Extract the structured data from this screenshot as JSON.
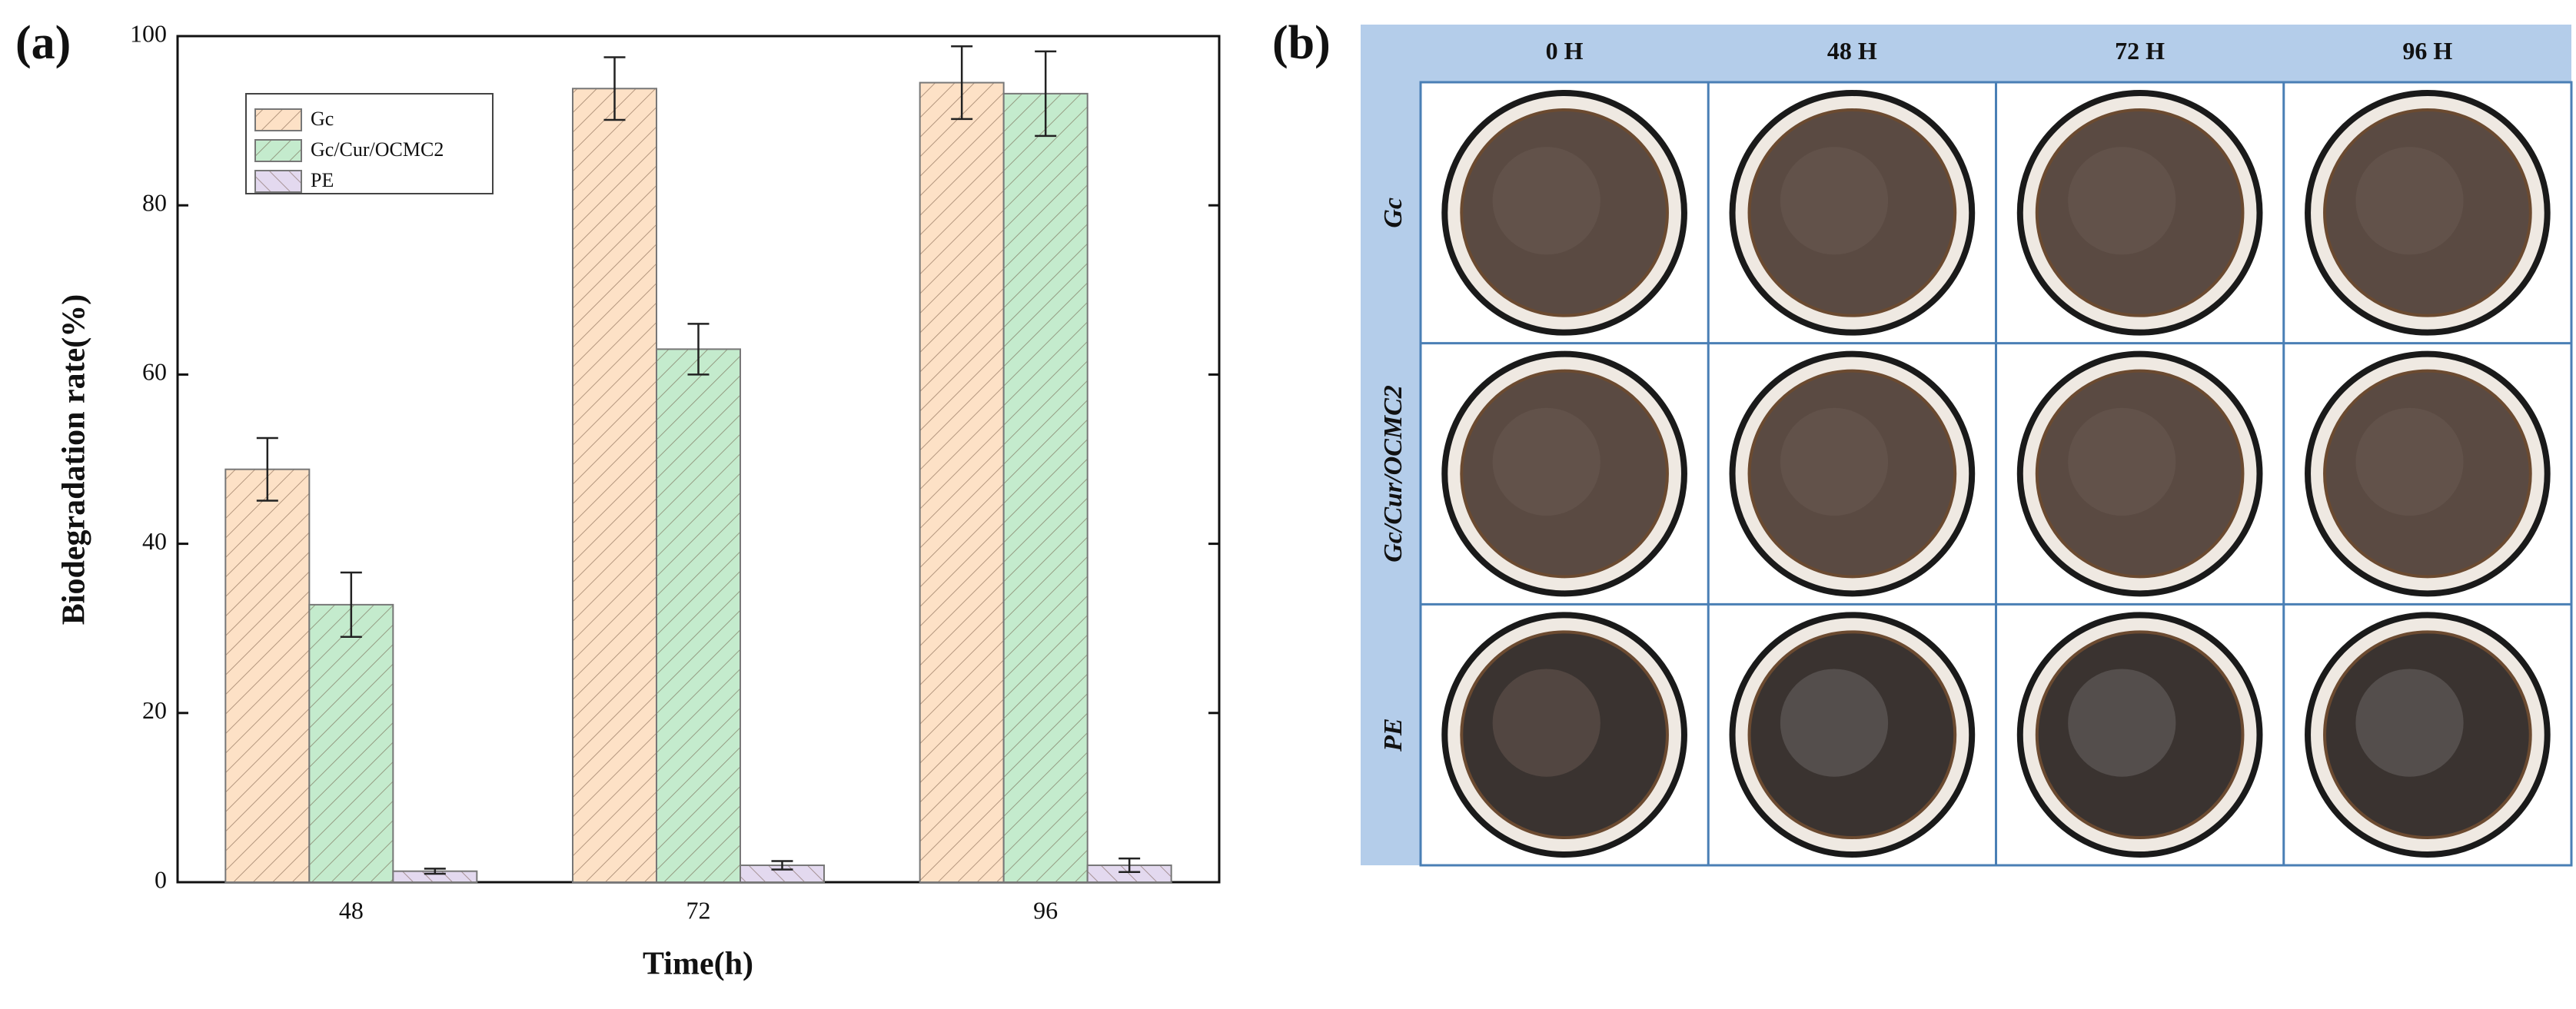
{
  "chart_data": {
    "type": "bar",
    "panel_label": "(a)",
    "x_label": "Time(h)",
    "y_label": "Biodegradation rate(%)",
    "categories": [
      "48",
      "72",
      "96"
    ],
    "series": [
      {
        "name": "Gc",
        "color": "#fde1c6",
        "values": [
          48.8,
          93.8,
          94.5
        ],
        "errors": [
          3.7,
          3.7,
          4.3
        ]
      },
      {
        "name": "Gc/Cur/OCMC2",
        "color": "#c4ebcd",
        "values": [
          32.8,
          63.0,
          93.2
        ],
        "errors": [
          3.8,
          3.0,
          5.0
        ]
      },
      {
        "name": "PE",
        "color": "#e3d9ef",
        "values": [
          1.3,
          2.0,
          2.0
        ],
        "errors": [
          0.3,
          0.5,
          0.8
        ]
      }
    ],
    "ylim": [
      0,
      100
    ],
    "yticks": [
      0,
      20,
      40,
      60,
      80,
      100
    ]
  },
  "photo_grid": {
    "panel_label": "(b)",
    "columns": [
      "0 H",
      "48 H",
      "72 H",
      "96 H"
    ],
    "rows": [
      "Gc",
      "Gc/Cur/OCMC2",
      "PE"
    ]
  }
}
